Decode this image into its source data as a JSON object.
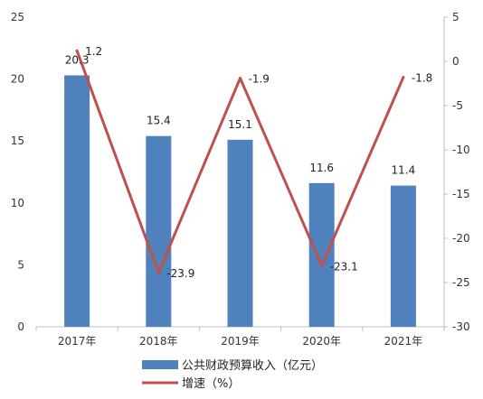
{
  "chart_data": {
    "type": "bar",
    "categories": [
      "2017年",
      "2018年",
      "2019年",
      "2020年",
      "2021年"
    ],
    "series": [
      {
        "name": "公共财政预算收入（亿元）",
        "type": "bar",
        "axis": "left",
        "color": "#4f81bd",
        "values": [
          20.3,
          15.4,
          15.1,
          11.6,
          11.4
        ],
        "labels": [
          "20.3",
          "15.4",
          "15.1",
          "11.6",
          "11.4"
        ]
      },
      {
        "name": "增速（%）",
        "type": "line",
        "axis": "right",
        "color": "#c0504d",
        "values": [
          1.2,
          -23.9,
          -1.9,
          -23.1,
          -1.8
        ],
        "labels": [
          "1.2",
          "-23.9",
          "-1.9",
          "-23.1",
          "-1.8"
        ]
      }
    ],
    "y_left": {
      "ylim": [
        0,
        25
      ],
      "ticks": [
        "0",
        "5",
        "10",
        "15",
        "20",
        "25"
      ]
    },
    "y_right": {
      "ylim": [
        -30,
        5
      ],
      "ticks": [
        "-30",
        "-25",
        "-20",
        "-15",
        "-10",
        "-5",
        "0",
        "5"
      ]
    },
    "grid": false,
    "legend": "bottom"
  }
}
